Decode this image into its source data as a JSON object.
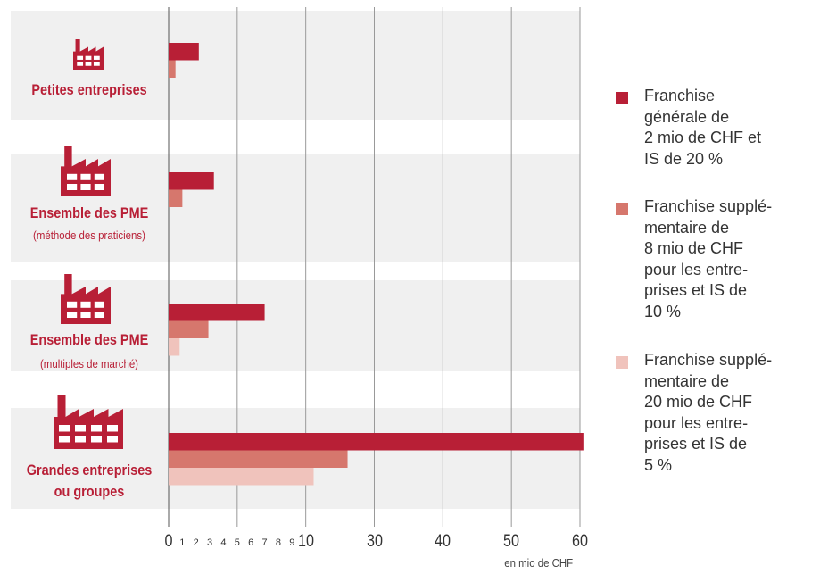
{
  "chart_data": {
    "type": "bar",
    "orientation": "horizontal",
    "categories": [
      "Petites entreprises",
      "Ensemble des PME",
      "Ensemble des PME",
      "Grandes entreprises\nou groupes"
    ],
    "category_notes": [
      null,
      "(méthode des praticiens)",
      "(multiples de marché)",
      null
    ],
    "series": [
      {
        "name": "Franchise\ngénérale de\n2 mio de CHF et\nIS de 20 %",
        "color": "#b81f36",
        "values": [
          2.2,
          3.3,
          7.0,
          60.5
        ]
      },
      {
        "name": "Franchise supplé-\nmentaire de\n8 mio de CHF\npour les entre-\nprises et IS de\n10 %",
        "color": "#d6776d",
        "values": [
          0.5,
          1.0,
          2.9,
          22.2
        ]
      },
      {
        "name": "Franchise supplé-\nmentaire de\n20 mio de CHF\npour les entre-\nprises et IS de\n5 %",
        "color": "#f0c3bc",
        "values": [
          null,
          null,
          0.8,
          12.3
        ]
      }
    ],
    "xlim": [
      0,
      60
    ],
    "grid_values": [
      0,
      5,
      10,
      30,
      40,
      50,
      60
    ],
    "xticks": [
      0,
      10,
      30,
      40,
      50,
      60
    ],
    "minor_xticks": [
      1,
      2,
      3,
      4,
      5,
      6,
      7,
      8,
      9
    ],
    "xlabel": "en mio de CHF",
    "grid": true,
    "legend": "right"
  }
}
